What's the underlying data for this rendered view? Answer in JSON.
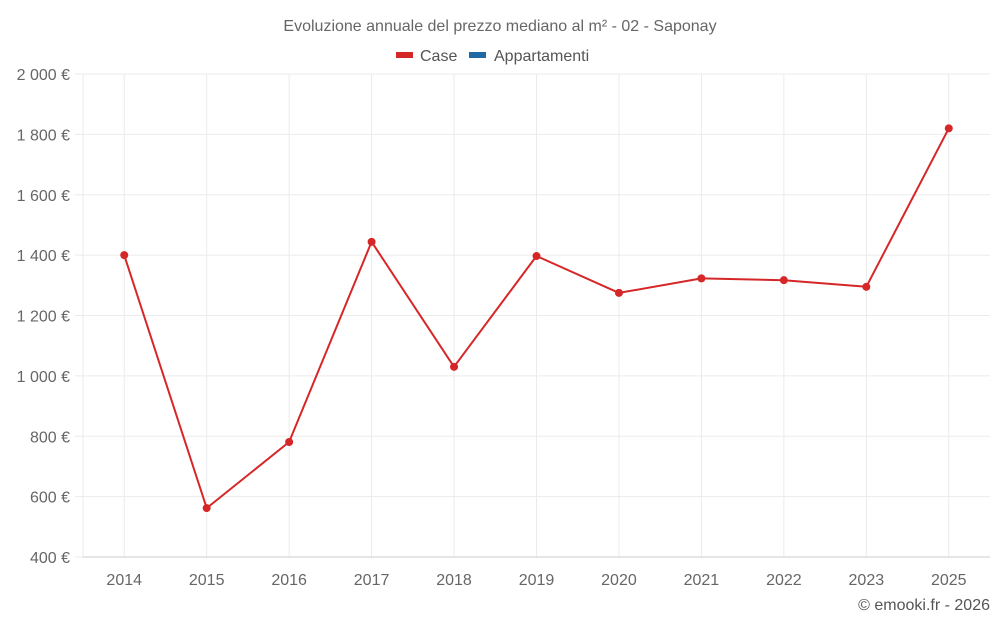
{
  "chart_data": {
    "type": "line",
    "title": "Evoluzione annuale del prezzo mediano al m² - 02 - Saponay",
    "xlabel": "",
    "ylabel": "",
    "categories": [
      "2014",
      "2015",
      "2016",
      "2017",
      "2018",
      "2019",
      "2020",
      "2021",
      "2022",
      "2023",
      "2025"
    ],
    "series": [
      {
        "name": "Case",
        "color": "#d62728",
        "values": [
          1400,
          562,
          781,
          1444,
          1030,
          1397,
          1275,
          1323,
          1317,
          1295,
          1820
        ]
      },
      {
        "name": "Appartamenti",
        "color": "#1f6aa5",
        "values": []
      }
    ],
    "ylim": [
      400,
      2000
    ],
    "yticks": [
      400,
      600,
      800,
      1000,
      1200,
      1400,
      1600,
      1800,
      2000
    ],
    "ytick_labels": [
      "400 €",
      "600 €",
      "800 €",
      "1 000 €",
      "1 200 €",
      "1 400 €",
      "1 600 €",
      "1 800 €",
      "2 000 €"
    ],
    "grid": true,
    "legend_position": "top-center"
  },
  "legend": [
    {
      "label": "Case",
      "color": "#d62728"
    },
    {
      "label": "Appartamenti",
      "color": "#1f6aa5"
    }
  ],
  "credit": "© emooki.fr - 2026"
}
